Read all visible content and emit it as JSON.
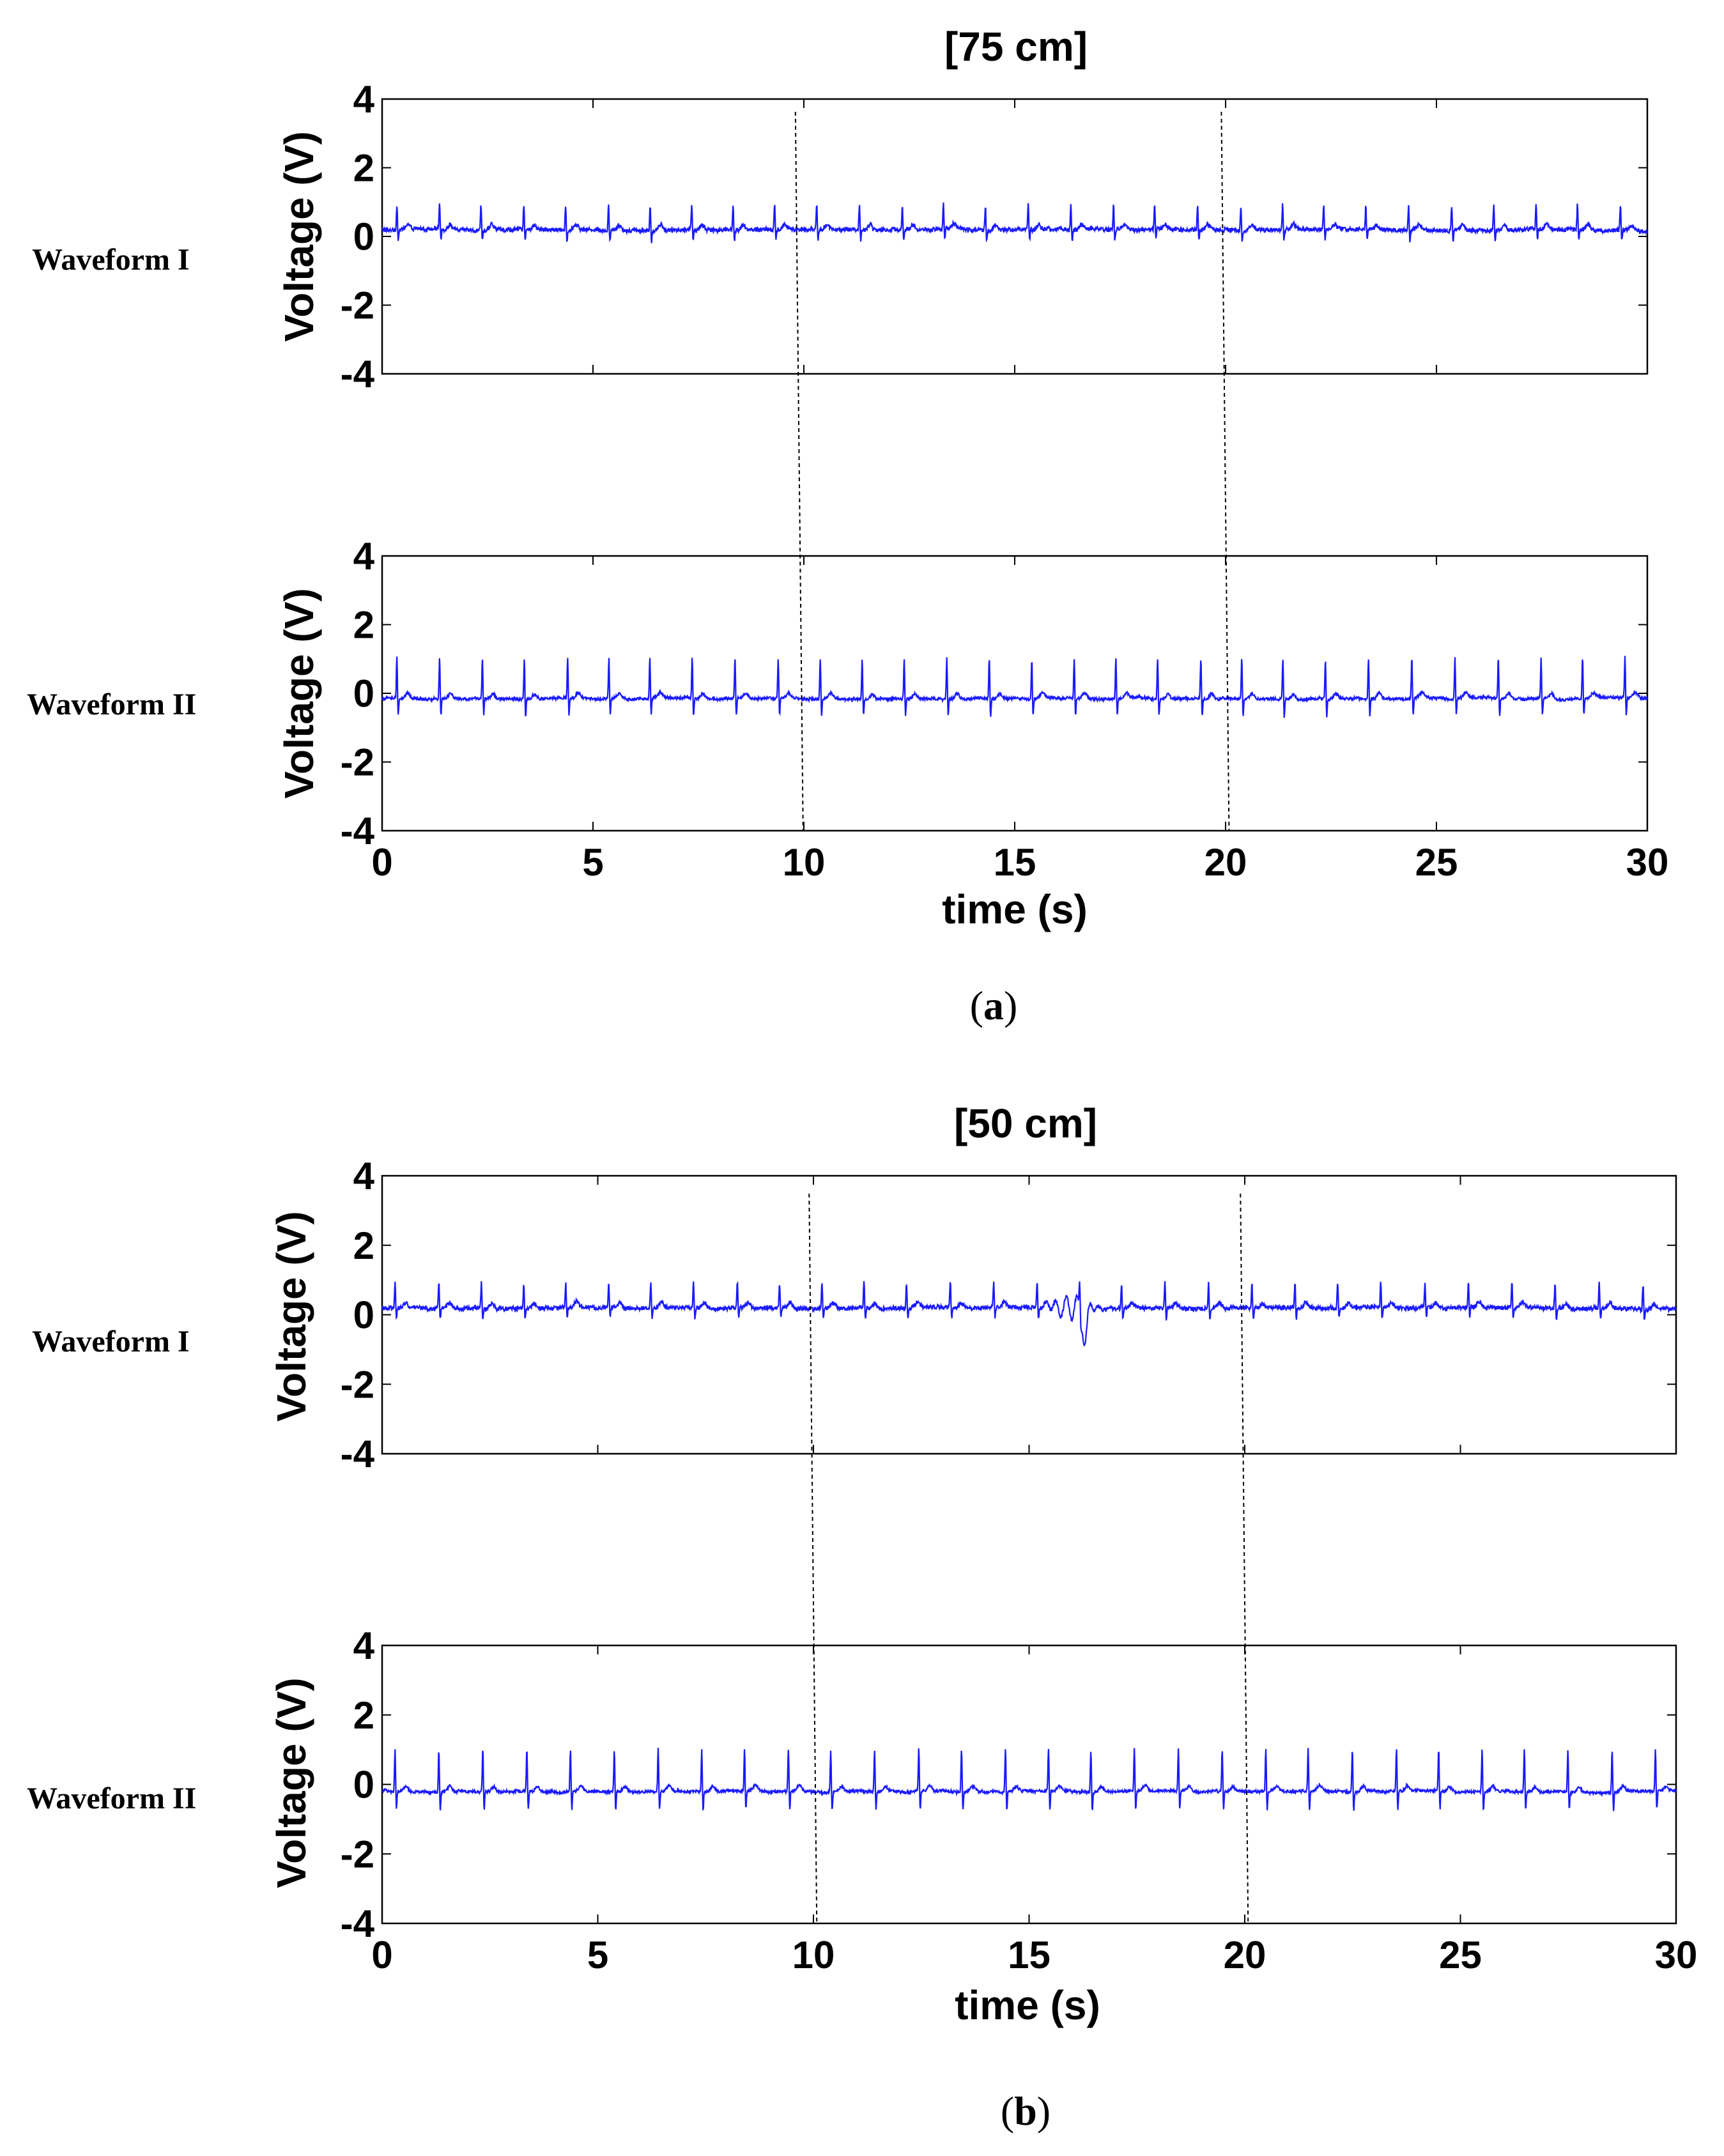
{
  "chart_data": [
    {
      "type": "line",
      "caption": "(a)",
      "caption_letter": "a",
      "title": "[75 cm]",
      "xlabel": "time (s)",
      "ylabel": "Voltage (V)",
      "xlim": [
        0,
        30
      ],
      "ylim": [
        -4,
        4
      ],
      "xticks": [
        0,
        5,
        10,
        15,
        20,
        25,
        30
      ],
      "yticks": [
        4,
        2,
        0,
        -2,
        -4
      ],
      "grid": false,
      "series_color": "#1a1aff",
      "divider_times": [
        9.8,
        19.9
      ],
      "panels": [
        {
          "name": "Waveform I",
          "baseline": 0.2,
          "r_amplitude": 0.75,
          "beat_interval": 1.0,
          "first_beat": 0.35,
          "noise": 0.12
        },
        {
          "name": "Waveform II",
          "baseline": -0.15,
          "r_amplitude": 1.2,
          "beat_interval": 1.0,
          "first_beat": 0.35,
          "noise": 0.08
        }
      ]
    },
    {
      "type": "line",
      "caption": "(b)",
      "caption_letter": "b",
      "title": "[50 cm]",
      "xlabel": "time (s)",
      "ylabel": "Voltage (V)",
      "xlim": [
        0,
        30
      ],
      "ylim": [
        -4,
        4
      ],
      "xticks": [
        0,
        5,
        10,
        15,
        20,
        25,
        30
      ],
      "yticks": [
        4,
        2,
        0,
        -2,
        -4
      ],
      "grid": false,
      "series_color": "#1a1aff",
      "divider_times": [
        9.9,
        19.9
      ],
      "panels": [
        {
          "name": "Waveform I",
          "baseline": 0.2,
          "r_amplitude": 0.75,
          "beat_interval": 1.0,
          "first_beat": 0.3,
          "noise": 0.12,
          "artifact_center": 16.3,
          "artifact_depth": -1.0
        },
        {
          "name": "Waveform II",
          "baseline": -0.2,
          "r_amplitude": 1.25,
          "beat_interval": 1.0,
          "first_beat": 0.3,
          "noise": 0.08
        }
      ]
    }
  ]
}
